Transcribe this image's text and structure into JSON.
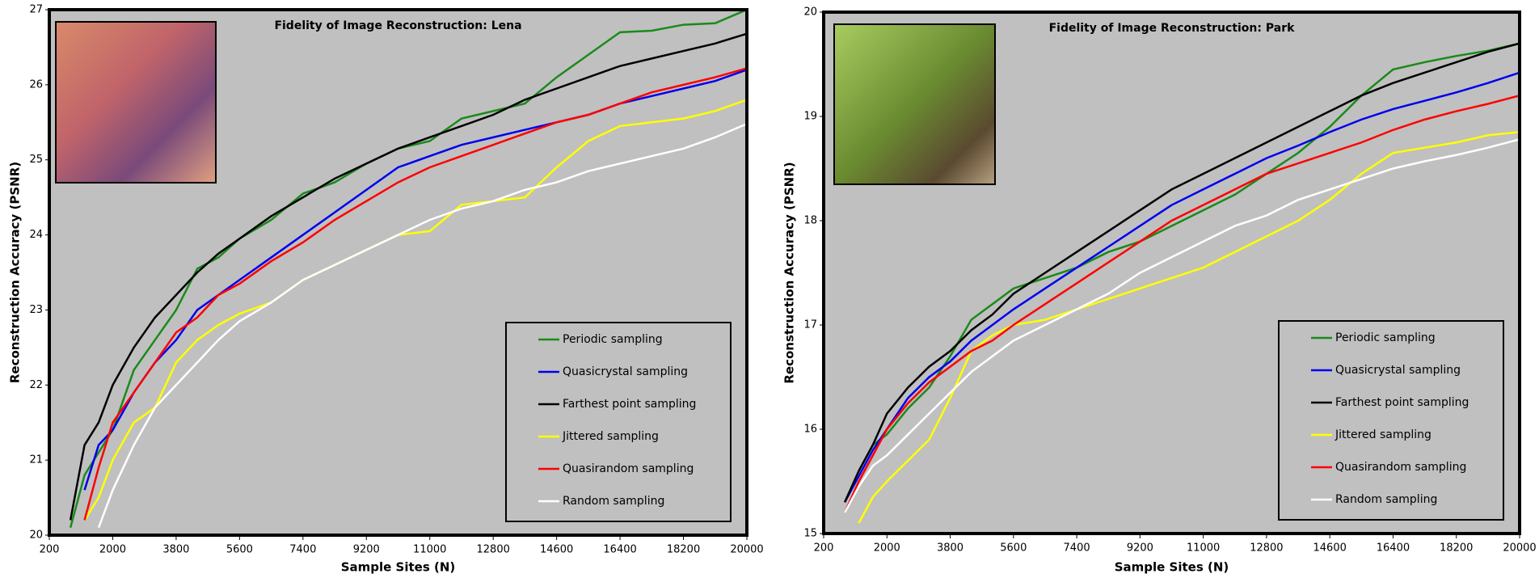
{
  "chart_data": [
    {
      "type": "line",
      "title": "Fidelity of Image Reconstruction: Lena",
      "xlabel": "Sample Sites (N)",
      "ylabel": "Reconstruction Accuracy (PSNR)",
      "x": [
        800,
        1200,
        1600,
        2000,
        2600,
        3200,
        3800,
        4400,
        5000,
        5600,
        6500,
        7400,
        8300,
        9200,
        10100,
        11000,
        11900,
        12800,
        13700,
        14600,
        15500,
        16400,
        17300,
        18200,
        19100,
        20000
      ],
      "xlim": [
        200,
        20000
      ],
      "xticks": [
        200,
        2000,
        3800,
        5600,
        7400,
        9200,
        11000,
        12800,
        14600,
        16400,
        18200,
        20000
      ],
      "ylim": [
        20,
        27
      ],
      "yticks": [
        20,
        21,
        22,
        23,
        24,
        25,
        26,
        27
      ],
      "legend": "lower right",
      "series": [
        {
          "name": "Periodic sampling",
          "color": "#1a8a1a",
          "values": [
            20.1,
            20.8,
            21.1,
            21.4,
            22.2,
            22.6,
            23.0,
            23.55,
            23.7,
            23.95,
            24.2,
            24.55,
            24.7,
            24.95,
            25.15,
            25.25,
            25.55,
            25.65,
            25.75,
            26.1,
            26.4,
            26.7,
            26.72,
            26.8,
            26.82,
            27.0
          ]
        },
        {
          "name": "Quasicrystal sampling",
          "color": "#0000ee",
          "values": [
            null,
            20.6,
            21.2,
            21.4,
            21.9,
            22.3,
            22.6,
            23.0,
            23.2,
            23.4,
            23.7,
            24.0,
            24.3,
            24.6,
            24.9,
            25.05,
            25.2,
            25.3,
            25.4,
            25.5,
            25.6,
            25.75,
            25.85,
            25.95,
            26.05,
            26.2
          ]
        },
        {
          "name": "Farthest point sampling",
          "color": "#000000",
          "values": [
            20.2,
            21.2,
            21.5,
            22.0,
            22.5,
            22.9,
            23.2,
            23.5,
            23.75,
            23.95,
            24.25,
            24.5,
            24.75,
            24.95,
            25.15,
            25.3,
            25.45,
            25.6,
            25.8,
            25.95,
            26.1,
            26.25,
            26.35,
            26.45,
            26.55,
            26.68
          ]
        },
        {
          "name": "Jittered sampling",
          "color": "#ffff00",
          "values": [
            null,
            20.2,
            20.5,
            21.0,
            21.5,
            21.7,
            22.3,
            22.6,
            22.8,
            22.95,
            23.1,
            23.4,
            23.6,
            23.8,
            24.0,
            24.05,
            24.4,
            24.45,
            24.5,
            24.9,
            25.25,
            25.45,
            25.5,
            25.55,
            25.65,
            25.8
          ]
        },
        {
          "name": "Quasirandom sampling",
          "color": "#ff0000",
          "values": [
            null,
            20.2,
            20.9,
            21.5,
            21.9,
            22.3,
            22.7,
            22.9,
            23.2,
            23.35,
            23.65,
            23.9,
            24.2,
            24.45,
            24.7,
            24.9,
            25.05,
            25.2,
            25.35,
            25.5,
            25.6,
            25.75,
            25.9,
            26.0,
            26.1,
            26.22
          ]
        },
        {
          "name": "Random sampling",
          "color": "#ffffff",
          "values": [
            null,
            null,
            20.1,
            20.6,
            21.2,
            21.7,
            22.0,
            22.3,
            22.6,
            22.85,
            23.1,
            23.4,
            23.6,
            23.8,
            24.0,
            24.2,
            24.35,
            24.45,
            24.6,
            24.7,
            24.85,
            24.95,
            25.05,
            25.15,
            25.3,
            25.48
          ]
        }
      ]
    },
    {
      "type": "line",
      "title": "Fidelity of Image Reconstruction: Park",
      "xlabel": "Sample Sites (N)",
      "ylabel": "Reconstruction Accuracy (PSNR)",
      "x": [
        800,
        1200,
        1600,
        2000,
        2600,
        3200,
        3800,
        4400,
        5000,
        5600,
        6500,
        7400,
        8300,
        9200,
        10100,
        11000,
        11900,
        12800,
        13700,
        14600,
        15500,
        16400,
        17300,
        18200,
        19100,
        20000
      ],
      "xlim": [
        200,
        20000
      ],
      "xticks": [
        200,
        2000,
        3800,
        5600,
        7400,
        9200,
        11000,
        12800,
        14600,
        16400,
        18200,
        20000
      ],
      "ylim": [
        15,
        20
      ],
      "yticks": [
        15,
        16,
        17,
        18,
        19,
        20
      ],
      "legend": "lower right",
      "series": [
        {
          "name": "Periodic sampling",
          "color": "#1a8a1a",
          "values": [
            null,
            15.6,
            15.85,
            15.95,
            16.2,
            16.4,
            16.7,
            17.05,
            17.2,
            17.35,
            17.45,
            17.55,
            17.7,
            17.8,
            17.95,
            18.1,
            18.25,
            18.45,
            18.65,
            18.9,
            19.2,
            19.45,
            19.52,
            19.58,
            19.63,
            19.7
          ]
        },
        {
          "name": "Quasicrystal sampling",
          "color": "#0000ee",
          "values": [
            15.3,
            15.55,
            15.8,
            16.0,
            16.3,
            16.5,
            16.65,
            16.85,
            17.0,
            17.15,
            17.35,
            17.55,
            17.75,
            17.95,
            18.15,
            18.3,
            18.45,
            18.6,
            18.72,
            18.85,
            18.97,
            19.07,
            19.15,
            19.23,
            19.32,
            19.42
          ]
        },
        {
          "name": "Farthest point sampling",
          "color": "#000000",
          "values": [
            15.3,
            15.6,
            15.85,
            16.15,
            16.4,
            16.6,
            16.75,
            16.95,
            17.1,
            17.3,
            17.5,
            17.7,
            17.9,
            18.1,
            18.3,
            18.45,
            18.6,
            18.75,
            18.9,
            19.05,
            19.2,
            19.32,
            19.42,
            19.52,
            19.62,
            19.7
          ]
        },
        {
          "name": "Jittered sampling",
          "color": "#ffff00",
          "values": [
            null,
            15.1,
            15.35,
            15.5,
            15.7,
            15.9,
            16.3,
            16.75,
            16.9,
            17.0,
            17.05,
            17.15,
            17.25,
            17.35,
            17.45,
            17.55,
            17.7,
            17.85,
            18.0,
            18.2,
            18.45,
            18.65,
            18.7,
            18.75,
            18.82,
            18.85
          ]
        },
        {
          "name": "Quasirandom sampling",
          "color": "#ff0000",
          "values": [
            15.2,
            15.5,
            15.75,
            16.0,
            16.25,
            16.45,
            16.6,
            16.75,
            16.85,
            17.0,
            17.2,
            17.4,
            17.6,
            17.8,
            18.0,
            18.15,
            18.3,
            18.45,
            18.55,
            18.65,
            18.75,
            18.87,
            18.97,
            19.05,
            19.12,
            19.2
          ]
        },
        {
          "name": "Random sampling",
          "color": "#ffffff",
          "values": [
            15.2,
            15.45,
            15.65,
            15.75,
            15.95,
            16.15,
            16.35,
            16.55,
            16.7,
            16.85,
            17.0,
            17.15,
            17.3,
            17.5,
            17.65,
            17.8,
            17.95,
            18.05,
            18.2,
            18.3,
            18.4,
            18.5,
            18.57,
            18.63,
            18.7,
            18.78
          ]
        }
      ]
    }
  ]
}
